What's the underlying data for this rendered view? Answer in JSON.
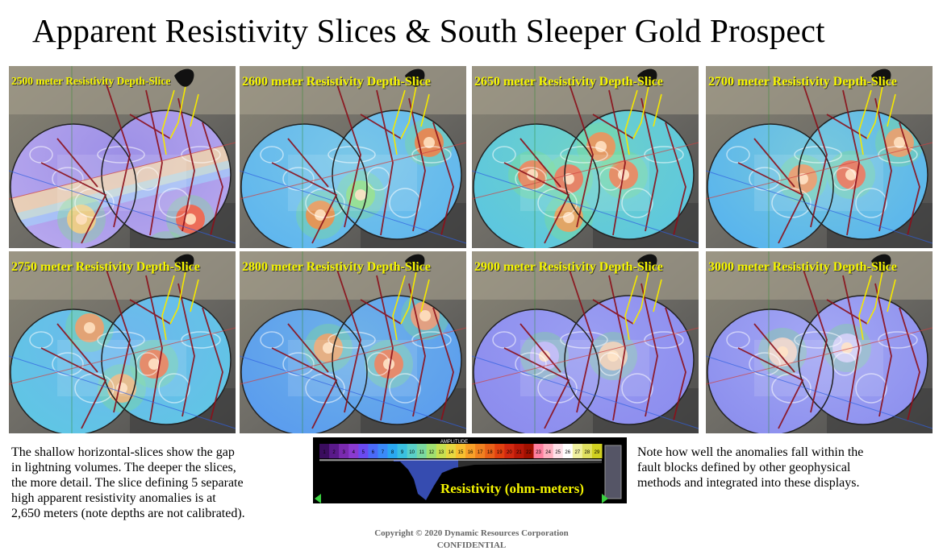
{
  "title": "Apparent Resistivity Slices & South Sleeper Gold Prospect",
  "panels": [
    {
      "label": "2500 meter Resistivity Depth-Slice"
    },
    {
      "label": "2600 meter Resistivity Depth-Slice"
    },
    {
      "label": "2650 meter Resistivity Depth-Slice"
    },
    {
      "label": "2700 meter Resistivity Depth-Slice"
    },
    {
      "label": "2750 meter Resistivity Depth-Slice"
    },
    {
      "label": "2800 meter Resistivity Depth-Slice"
    },
    {
      "label": "2900 meter Resistivity Depth-Slice"
    },
    {
      "label": "3000 meter Resistivity Depth-Slice"
    }
  ],
  "caption_left": {
    "lines": [
      "The shallow horizontal-slices show the gap",
      "in lightning  volumes.  The deeper the slices,",
      "the more detail. The slice defining 5 separate",
      "high apparent resistivity anomalies is at",
      "2,650 meters (note depths are not calibrated)."
    ]
  },
  "caption_right": {
    "lines": [
      "Note how well the anomalies fall within the",
      "fault blocks defined by other geophysical",
      "methods and integrated into these displays."
    ]
  },
  "color_scale": {
    "label": "Resistivity (ohm-meters)",
    "header": "AMPLITUDE",
    "ticks": [
      "1",
      "2",
      "3",
      "4",
      "5",
      "6",
      "7",
      "8",
      "9",
      "10",
      "11",
      "12",
      "13",
      "14",
      "15",
      "16",
      "17",
      "18",
      "19",
      "20",
      "21",
      "22",
      "23",
      "24",
      "25",
      "26",
      "27",
      "28",
      "29"
    ]
  },
  "copyright": {
    "line1": "Copyright  © 2020 Dynamic  Resources Corporation",
    "line2": "CONFIDENTIAL"
  }
}
